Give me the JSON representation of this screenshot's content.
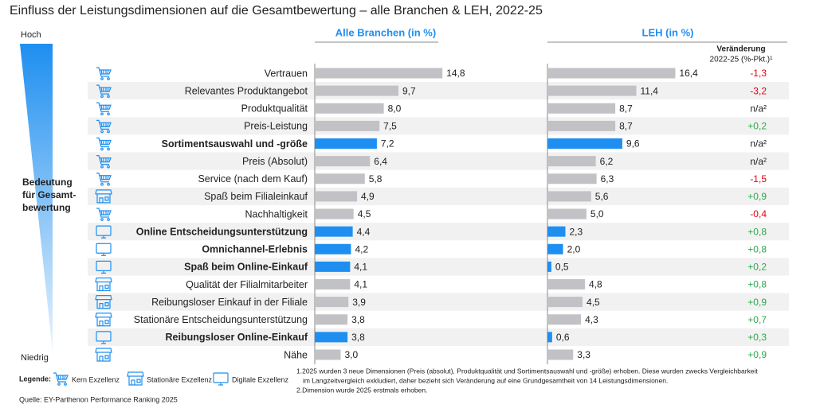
{
  "chart_data": {
    "type": "bar",
    "orientation": "horizontal",
    "title": "Einfluss der Leistungsdimensionen auf die Gesamtbewertung – alle Branchen & LEH, 2022-25",
    "axis_top": "Hoch",
    "axis_bottom": "Niedrig",
    "axis_label": [
      "Bedeutung",
      "für Gesamt-",
      "bewertung"
    ],
    "categories": [
      "Vertrauen",
      "Relevantes Produktangebot",
      "Produktqualität",
      "Preis-Leistung",
      "Sortimentsauswahl und -größe",
      "Preis (Absolut)",
      "Service (nach dem Kauf)",
      "Spaß beim Filialeinkauf",
      "Nachhaltigkeit",
      "Online Entscheidungsunterstützung",
      "Omnichannel-Erlebnis",
      "Spaß beim Online-Einkauf",
      "Qualität der Filialmitarbeiter",
      "Reibungsloser Einkauf in der Filiale",
      "Stationäre Entscheidungsunterstützung",
      "Reibungsloser Online-Einkauf",
      "Nähe"
    ],
    "series": [
      {
        "name": "Alle Branchen (in %)",
        "color": "#c2c1c6",
        "xlim": [
          0,
          17
        ],
        "values": [
          14.8,
          9.7,
          8.0,
          7.5,
          7.2,
          6.4,
          5.8,
          4.9,
          4.5,
          4.4,
          4.2,
          4.1,
          4.1,
          3.9,
          3.8,
          3.8,
          3.0
        ],
        "value_labels": [
          "14,8",
          "9,7",
          "8,0",
          "7,5",
          "7,2",
          "6,4",
          "5,8",
          "4,9",
          "4,5",
          "4,4",
          "4,2",
          "4,1",
          "4,1",
          "3,9",
          "3,8",
          "3,8",
          "3,0"
        ],
        "bar_colors": [
          "#c2c1c6",
          "#c2c1c6",
          "#c2c1c6",
          "#c2c1c6",
          "#1e8ff0",
          "#c2c1c6",
          "#c2c1c6",
          "#c2c1c6",
          "#c2c1c6",
          "#1e8ff0",
          "#1e8ff0",
          "#1e8ff0",
          "#c2c1c6",
          "#c2c1c6",
          "#c2c1c6",
          "#1e8ff0",
          "#c2c1c6"
        ]
      },
      {
        "name": "LEH (in %)",
        "color": "#c2c1c6",
        "xlim": [
          0,
          18.4
        ],
        "values": [
          16.4,
          11.4,
          8.7,
          8.7,
          9.6,
          6.2,
          6.3,
          5.6,
          5.0,
          2.3,
          2.0,
          0.5,
          4.8,
          4.5,
          4.3,
          0.6,
          3.3
        ],
        "value_labels": [
          "16,4",
          "11,4",
          "8,7",
          "8,7",
          "9,6",
          "6,2",
          "6,3",
          "5,6",
          "5,0",
          "2,3",
          "2,0",
          "0,5",
          "4,8",
          "4,5",
          "4,3",
          "0,6",
          "3,3"
        ],
        "bar_colors": [
          "#c2c1c6",
          "#c2c1c6",
          "#c2c1c6",
          "#c2c1c6",
          "#1e8ff0",
          "#c2c1c6",
          "#c2c1c6",
          "#c2c1c6",
          "#c2c1c6",
          "#1e8ff0",
          "#1e8ff0",
          "#1e8ff0",
          "#c2c1c6",
          "#c2c1c6",
          "#c2c1c6",
          "#1e8ff0",
          "#c2c1c6"
        ]
      }
    ],
    "change": {
      "header": [
        "Veränderung",
        "2022-25 (%-Pkt.)¹"
      ],
      "values": [
        -1.3,
        -3.2,
        null,
        0.2,
        null,
        null,
        -1.5,
        0.9,
        -0.4,
        0.8,
        0.8,
        0.2,
        0.8,
        0.9,
        0.7,
        0.3,
        0.9
      ],
      "value_labels": [
        "-1,3",
        "-3,2",
        "n/a²",
        "+0,2",
        "n/a²",
        "n/a²",
        "-1,5",
        "+0,9",
        "-0,4",
        "+0,8",
        "+0,8",
        "+0,2",
        "+0,8",
        "+0,9",
        "+0,7",
        "+0,3",
        "+0,9"
      ],
      "negative_color": "#e3000f",
      "positive_color": "#2ba84a"
    },
    "legend": {
      "title": "Legende:",
      "items": [
        "Kern Exzellenz",
        "Stationäre Exzellenz",
        "Digitale Exzellenz"
      ]
    },
    "footnotes": [
      "1.2025 wurden 3 neue Dimensionen (Preis (absolut), Produktqualität und Sortimentsauswahl und -größe) erhoben. Diese wurden zwecks Vergleichbarkeit",
      "im Langzeitvergleich exkludiert, daher bezieht sich Veränderung auf eine Grundgesamtheit von 14 Leistungsdimensionen.",
      "2.Dimension wurde 2025 erstmals erhoben."
    ],
    "source": "Quelle: EY-Parthenon Performance Ranking 2025"
  }
}
